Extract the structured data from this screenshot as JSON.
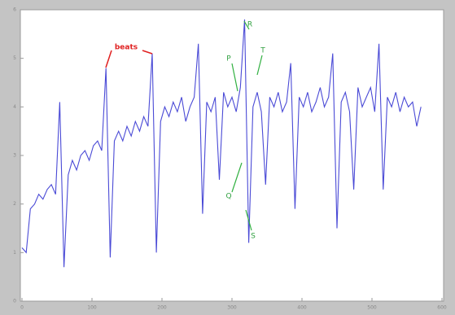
{
  "chart_data": {
    "type": "line",
    "annotations": [
      "beats",
      "R",
      "P",
      "T",
      "Q",
      "S"
    ],
    "x": [
      0,
      6,
      12,
      18,
      24,
      30,
      36,
      42,
      48,
      54,
      60,
      66,
      72,
      78,
      84,
      90,
      96,
      102,
      108,
      114,
      120,
      126,
      132,
      138,
      144,
      150,
      156,
      162,
      168,
      174,
      180,
      186,
      192,
      198,
      204,
      210,
      216,
      222,
      228,
      234,
      240,
      246,
      252,
      258,
      264,
      270,
      276,
      282,
      288,
      294,
      300,
      306,
      312,
      318,
      324,
      330,
      336,
      342,
      348,
      354,
      360,
      366,
      372,
      378,
      384,
      390,
      396,
      402,
      408,
      414,
      420,
      426,
      432,
      438,
      444,
      450,
      456,
      462,
      468,
      474,
      480,
      486,
      492,
      498,
      504,
      510,
      516,
      522,
      528,
      534,
      540,
      546,
      552,
      558,
      564,
      570
    ],
    "series": [
      {
        "color": "#4a4ad6",
        "values": [
          1.1,
          1.0,
          1.9,
          2.0,
          2.2,
          2.1,
          2.3,
          2.4,
          2.2,
          4.1,
          0.7,
          2.6,
          2.9,
          2.7,
          3.0,
          3.1,
          2.9,
          3.2,
          3.3,
          3.1,
          4.8,
          0.9,
          3.3,
          3.5,
          3.3,
          3.6,
          3.4,
          3.7,
          3.5,
          3.8,
          3.6,
          5.1,
          1.0,
          3.7,
          4.0,
          3.8,
          4.1,
          3.9,
          4.2,
          3.7,
          4.0,
          4.2,
          5.3,
          1.8,
          4.1,
          3.9,
          4.2,
          2.5,
          4.3,
          4.0,
          4.2,
          3.9,
          4.4,
          5.8,
          1.2,
          4.0,
          4.3,
          3.9,
          2.4,
          4.2,
          4.0,
          4.3,
          3.9,
          4.1,
          4.9,
          1.9,
          4.2,
          4.0,
          4.3,
          3.9,
          4.1,
          4.4,
          4.0,
          4.2,
          5.1,
          1.5,
          4.1,
          4.3,
          3.9,
          2.3,
          4.4,
          4.0,
          4.2,
          4.4,
          3.9,
          5.3,
          2.3,
          4.2,
          4.0,
          4.3,
          3.9,
          4.2,
          4.0,
          4.1,
          3.6,
          4.0
        ]
      }
    ],
    "xlim": [
      0,
      600
    ],
    "xticks": [
      0,
      100,
      200,
      300,
      400,
      500,
      600
    ],
    "ylim": [
      0,
      6
    ],
    "yticks": [
      0,
      1,
      2,
      3,
      4,
      5,
      6
    ]
  }
}
